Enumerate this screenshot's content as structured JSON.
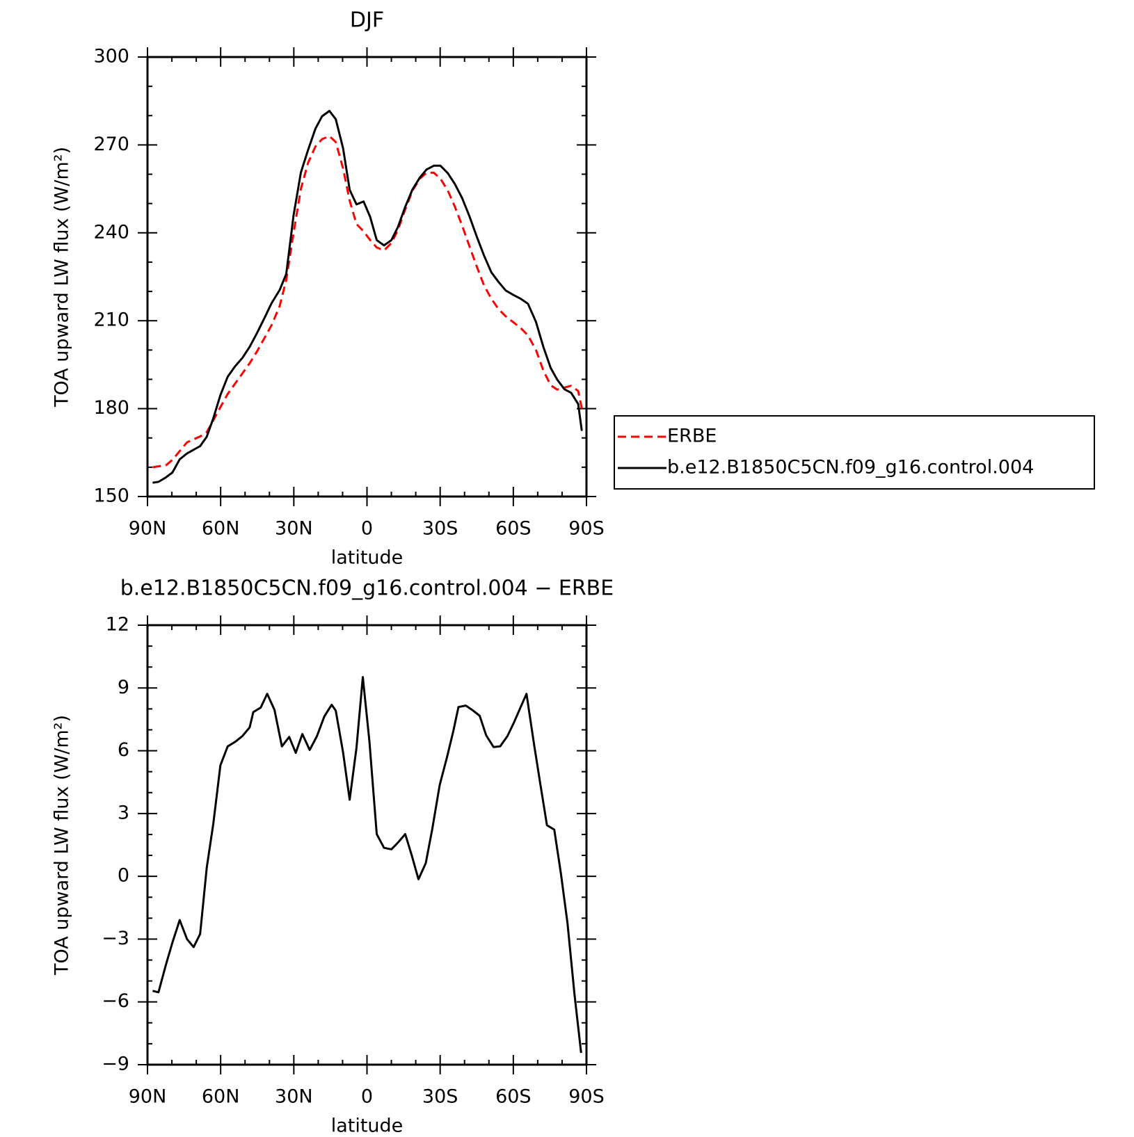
{
  "chart_data": [
    {
      "type": "line",
      "title": "DJF",
      "xlabel": "latitude",
      "ylabel": "TOA upward LW flux (W/m²)",
      "x": [
        87.9,
        85.5,
        82.5,
        79.8,
        76.8,
        73.8,
        68.4,
        65.7,
        63.0,
        60.1,
        57.1,
        54.1,
        51.1,
        48.1,
        45.1,
        42.1,
        39.1,
        35.8,
        33.1,
        30.1,
        27.1,
        24.1,
        21.1,
        18.4,
        15.4,
        12.8,
        9.8,
        7.1,
        4.3,
        1.4,
        -1.3,
        -4.0,
        -7.0,
        -10.0,
        -12.7,
        -15.7,
        -18.7,
        -21.7,
        -24.4,
        -27.4,
        -30.1,
        -33.1,
        -36.0,
        -39.0,
        -42.0,
        -45.0,
        -48.0,
        -51.0,
        -53.9,
        -56.9,
        -60.0,
        -63.0,
        -66.0,
        -69.3,
        -72.3,
        -75.3,
        -78.0,
        -81.0,
        -83.7,
        -86.6,
        -88.1
      ],
      "series": [
        {
          "name": "ERBE",
          "color": "#ff0000",
          "dashed": true,
          "values": [
            160,
            160.3,
            160.6,
            162.5,
            165.5,
            168.5,
            170.5,
            172,
            176,
            180.5,
            185,
            188.5,
            192,
            195.5,
            199.5,
            204,
            208.5,
            215,
            224,
            240,
            255,
            264,
            269.5,
            272,
            273,
            271,
            262,
            251,
            243,
            240.5,
            237.5,
            235,
            234,
            236.5,
            241,
            248,
            254.5,
            258.5,
            260.5,
            260.5,
            258.5,
            254.5,
            249,
            242.5,
            235.5,
            228.5,
            222,
            217.5,
            214,
            211.5,
            209.5,
            207.5,
            205,
            200,
            193,
            188,
            186.5,
            187.2,
            187.8,
            186,
            180
          ]
        },
        {
          "name": "b.e12.B1850C5CN.f09_g16.control.004",
          "color": "#000000",
          "dashed": false,
          "values": [
            154.7,
            155.0,
            156.5,
            158.2,
            162.7,
            164.7,
            167.2,
            170.4,
            176.7,
            184.6,
            190.9,
            194.4,
            197.3,
            201.1,
            205.8,
            210.8,
            216.0,
            220.5,
            226.0,
            246,
            260.6,
            268.4,
            275.6,
            279.8,
            281.6,
            278.8,
            268.9,
            254.7,
            249.7,
            250.7,
            245.4,
            237.5,
            235.7,
            237.5,
            242.0,
            248.9,
            254.9,
            258.9,
            261.6,
            262.9,
            262.9,
            260.4,
            256.7,
            251.9,
            245.7,
            238.7,
            232.2,
            226.5,
            223.3,
            220.3,
            218.8,
            217.5,
            215.8,
            209.6,
            201.1,
            193.9,
            189.9,
            186.6,
            185.4,
            181.6,
            172.4
          ]
        }
      ],
      "xlim": [
        90,
        -90
      ],
      "xticks": [
        {
          "value": 90,
          "label": "90N"
        },
        {
          "value": 60,
          "label": "60N"
        },
        {
          "value": 30,
          "label": "30N"
        },
        0,
        {
          "value": -30,
          "label": "30S"
        },
        {
          "value": -60,
          "label": "60S"
        },
        {
          "value": -90,
          "label": "90S"
        }
      ],
      "xminorticks": [
        80,
        70,
        50,
        40,
        20,
        10,
        -10,
        -20,
        -40,
        -50,
        -70,
        -80
      ],
      "ylim": [
        150,
        300
      ],
      "yticks": [
        150,
        180,
        210,
        240,
        270,
        300
      ],
      "yminorticks": [
        160,
        170,
        190,
        200,
        220,
        230,
        250,
        260,
        280,
        290
      ],
      "legend": "right"
    },
    {
      "type": "line",
      "title": "b.e12.B1850C5CN.f09_g16.control.004 − ERBE",
      "xlabel": "latitude",
      "ylabel": "TOA upward LW flux (W/m²)",
      "x": [
        87.9,
        85.5,
        82.5,
        79.8,
        76.8,
        73.8,
        71.1,
        68.4,
        65.7,
        63.0,
        60.1,
        57.1,
        54.1,
        51.1,
        48.1,
        46.6,
        43.6,
        40.9,
        37.9,
        34.9,
        31.9,
        29.2,
        26.5,
        23.5,
        20.5,
        17.5,
        14.5,
        12.8,
        9.8,
        7.1,
        4.3,
        1.7,
        -1.0,
        -4.0,
        -7.0,
        -10.0,
        -12.7,
        -15.7,
        -18.4,
        -21.1,
        -24.1,
        -26.8,
        -29.8,
        -32.8,
        -35.4,
        -37.5,
        -40.5,
        -43.5,
        -46.2,
        -48.9,
        -51.9,
        -54.6,
        -57.6,
        -60.3,
        -63.0,
        -65.4,
        -68.4,
        -71.1,
        -73.8,
        -76.8,
        -79.5,
        -82.2,
        -85.1,
        -87.8
      ],
      "series": [
        {
          "color": "#000000",
          "dashed": false,
          "values": [
            -5.47,
            -5.54,
            -4.25,
            -3.17,
            -2.09,
            -3.0,
            -3.38,
            -2.75,
            0.42,
            2.51,
            5.3,
            6.21,
            6.42,
            6.7,
            7.12,
            7.85,
            8.06,
            8.72,
            7.95,
            6.21,
            6.66,
            5.9,
            6.8,
            6.04,
            6.7,
            7.64,
            8.2,
            7.92,
            5.93,
            3.66,
            6.14,
            9.52,
            6.45,
            2.02,
            1.36,
            1.29,
            1.61,
            2.02,
            0.98,
            -0.14,
            0.63,
            2.27,
            4.36,
            5.69,
            6.94,
            8.09,
            8.16,
            7.92,
            7.67,
            6.73,
            6.18,
            6.21,
            6.7,
            7.36,
            8.09,
            8.72,
            6.38,
            4.4,
            2.44,
            2.23,
            0.14,
            -2.23,
            -5.65,
            -8.44
          ]
        }
      ],
      "xlim": [
        90,
        -90
      ],
      "xticks": [
        {
          "value": 90,
          "label": "90N"
        },
        {
          "value": 60,
          "label": "60N"
        },
        {
          "value": 30,
          "label": "30N"
        },
        0,
        {
          "value": -30,
          "label": "30S"
        },
        {
          "value": -60,
          "label": "60S"
        },
        {
          "value": -90,
          "label": "90S"
        }
      ],
      "xminorticks": [
        80,
        70,
        50,
        40,
        20,
        10,
        -10,
        -20,
        -40,
        -50,
        -70,
        -80
      ],
      "ylim": [
        -9,
        12
      ],
      "yticks": [
        {
          "value": -9,
          "label": "−9"
        },
        {
          "value": -6,
          "label": "−6"
        },
        {
          "value": -3,
          "label": "−3"
        },
        0,
        3,
        6,
        9,
        12
      ],
      "yminorticks": [
        -8,
        -7,
        -5,
        -4,
        -2,
        -1,
        1,
        2,
        4,
        5,
        7,
        8,
        10,
        11
      ]
    }
  ]
}
